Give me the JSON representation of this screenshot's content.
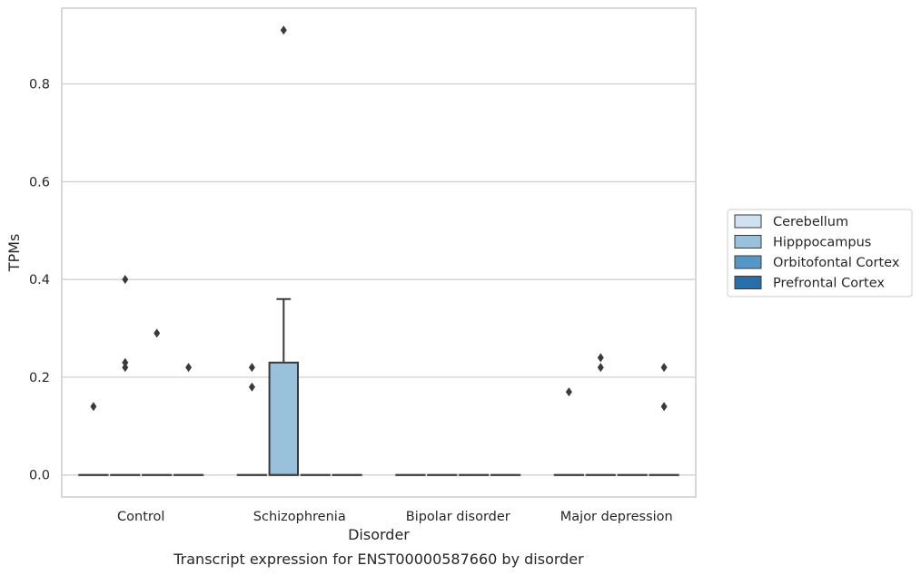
{
  "caption": "Transcript expression for ENST00000587660 by disorder",
  "chart_data": {
    "type": "box",
    "xlabel": "Disorder",
    "ylabel": "TPMs",
    "ylim": [
      -0.045,
      0.955
    ],
    "yticks": [
      0.0,
      0.2,
      0.4,
      0.6,
      0.8
    ],
    "ytick_labels": [
      "0.0",
      "0.2",
      "0.4",
      "0.6",
      "0.8"
    ],
    "categories": [
      "Control",
      "Schizophrenia",
      "Bipolar disorder",
      "Major depression"
    ],
    "grid": "horizontal",
    "legend_position": "right",
    "legend": [
      {
        "label": "Cerebellum",
        "color": "#d0e1f2"
      },
      {
        "label": "Hipppocampus",
        "color": "#9ac1dc"
      },
      {
        "label": "Orbitofontal Cortex",
        "color": "#5497c6"
      },
      {
        "label": "Prefrontal Cortex",
        "color": "#2a6ea8"
      }
    ],
    "boxes": [
      {
        "category": "Control",
        "group": "Cerebellum",
        "q1": 0,
        "median": 0,
        "q3": 0,
        "whisker_low": 0,
        "whisker_high": 0,
        "outliers": [
          0.14
        ]
      },
      {
        "category": "Control",
        "group": "Hipppocampus",
        "q1": 0,
        "median": 0,
        "q3": 0,
        "whisker_low": 0,
        "whisker_high": 0,
        "outliers": [
          0.4,
          0.23,
          0.22
        ]
      },
      {
        "category": "Control",
        "group": "Orbitofontal Cortex",
        "q1": 0,
        "median": 0,
        "q3": 0,
        "whisker_low": 0,
        "whisker_high": 0,
        "outliers": [
          0.29
        ]
      },
      {
        "category": "Control",
        "group": "Prefrontal Cortex",
        "q1": 0,
        "median": 0,
        "q3": 0,
        "whisker_low": 0,
        "whisker_high": 0,
        "outliers": [
          0.22
        ]
      },
      {
        "category": "Schizophrenia",
        "group": "Cerebellum",
        "q1": 0,
        "median": 0,
        "q3": 0,
        "whisker_low": 0,
        "whisker_high": 0,
        "outliers": [
          0.22,
          0.18
        ]
      },
      {
        "category": "Schizophrenia",
        "group": "Hipppocampus",
        "q1": 0,
        "median": 0,
        "q3": 0.23,
        "whisker_low": 0,
        "whisker_high": 0.36,
        "outliers": [
          0.91
        ]
      },
      {
        "category": "Schizophrenia",
        "group": "Orbitofontal Cortex",
        "q1": 0,
        "median": 0,
        "q3": 0,
        "whisker_low": 0,
        "whisker_high": 0,
        "outliers": []
      },
      {
        "category": "Schizophrenia",
        "group": "Prefrontal Cortex",
        "q1": 0,
        "median": 0,
        "q3": 0,
        "whisker_low": 0,
        "whisker_high": 0,
        "outliers": []
      },
      {
        "category": "Bipolar disorder",
        "group": "Cerebellum",
        "q1": 0,
        "median": 0,
        "q3": 0,
        "whisker_low": 0,
        "whisker_high": 0,
        "outliers": []
      },
      {
        "category": "Bipolar disorder",
        "group": "Hipppocampus",
        "q1": 0,
        "median": 0,
        "q3": 0,
        "whisker_low": 0,
        "whisker_high": 0,
        "outliers": []
      },
      {
        "category": "Bipolar disorder",
        "group": "Orbitofontal Cortex",
        "q1": 0,
        "median": 0,
        "q3": 0,
        "whisker_low": 0,
        "whisker_high": 0,
        "outliers": []
      },
      {
        "category": "Bipolar disorder",
        "group": "Prefrontal Cortex",
        "q1": 0,
        "median": 0,
        "q3": 0,
        "whisker_low": 0,
        "whisker_high": 0,
        "outliers": []
      },
      {
        "category": "Major depression",
        "group": "Cerebellum",
        "q1": 0,
        "median": 0,
        "q3": 0,
        "whisker_low": 0,
        "whisker_high": 0,
        "outliers": [
          0.17
        ]
      },
      {
        "category": "Major depression",
        "group": "Hipppocampus",
        "q1": 0,
        "median": 0,
        "q3": 0,
        "whisker_low": 0,
        "whisker_high": 0,
        "outliers": [
          0.24,
          0.22
        ]
      },
      {
        "category": "Major depression",
        "group": "Orbitofontal Cortex",
        "q1": 0,
        "median": 0,
        "q3": 0,
        "whisker_low": 0,
        "whisker_high": 0,
        "outliers": []
      },
      {
        "category": "Major depression",
        "group": "Prefrontal Cortex",
        "q1": 0,
        "median": 0,
        "q3": 0,
        "whisker_low": 0,
        "whisker_high": 0,
        "outliers": [
          0.22,
          0.14
        ]
      }
    ]
  }
}
